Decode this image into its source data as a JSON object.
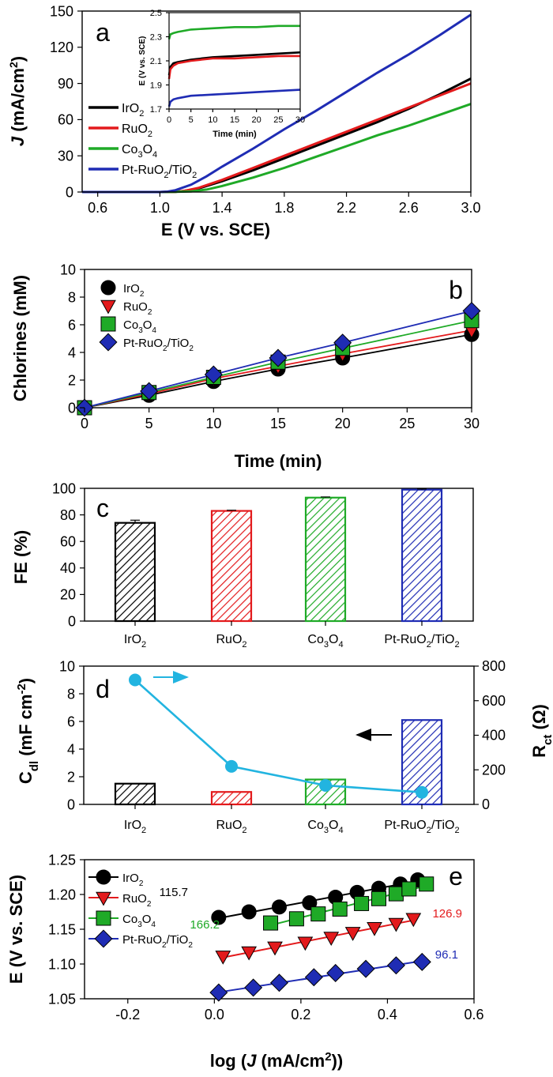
{
  "figure": {
    "colors": {
      "IrO2": "#000000",
      "RuO2": "#e31a1c",
      "Co3O4": "#1faa27",
      "Pt-RuO2/TiO2": "#1f2cb4",
      "Rct": "#22b4e0"
    }
  },
  "chart_data": [
    {
      "panel": "a",
      "type": "line",
      "xlabel": "E (V vs. SCE)",
      "ylabel": "J (mA/cm2)",
      "xlim": [
        0.5,
        3.0
      ],
      "ylim": [
        0,
        150
      ],
      "xticks": [
        0.6,
        1.0,
        1.4,
        1.8,
        2.2,
        2.6,
        3.0
      ],
      "yticks": [
        0,
        30,
        60,
        90,
        120,
        150
      ],
      "legend_position": "left",
      "series": [
        {
          "name": "IrO2",
          "x": [
            0.5,
            1.0,
            1.1,
            1.15,
            1.25,
            1.4,
            1.6,
            1.8,
            2.0,
            2.2,
            2.4,
            2.6,
            2.8,
            3.0
          ],
          "y": [
            0,
            0,
            0.2,
            0.8,
            3,
            9,
            18,
            28,
            38,
            48,
            58,
            69,
            81,
            94
          ]
        },
        {
          "name": "RuO2",
          "x": [
            0.5,
            1.0,
            1.1,
            1.15,
            1.25,
            1.4,
            1.6,
            1.8,
            2.0,
            2.2,
            2.4,
            2.6,
            2.8,
            3.0
          ],
          "y": [
            0,
            0,
            0.2,
            0.8,
            3.5,
            10,
            20,
            30,
            40,
            50,
            60,
            70,
            80,
            90
          ]
        },
        {
          "name": "Co3O4",
          "x": [
            0.5,
            1.0,
            1.1,
            1.2,
            1.3,
            1.4,
            1.6,
            1.8,
            2.0,
            2.2,
            2.4,
            2.6,
            2.8,
            3.0
          ],
          "y": [
            0,
            0,
            0.1,
            0.5,
            2,
            5,
            12,
            20,
            29,
            38,
            47,
            55,
            64,
            73
          ]
        },
        {
          "name": "Pt-RuO2/TiO2",
          "x": [
            0.5,
            1.0,
            1.05,
            1.1,
            1.2,
            1.3,
            1.4,
            1.6,
            1.8,
            2.0,
            2.2,
            2.4,
            2.6,
            2.8,
            3.0
          ],
          "y": [
            0,
            0,
            0.3,
            1.5,
            6,
            13,
            21,
            36,
            52,
            67,
            83,
            99,
            114,
            130,
            147
          ]
        }
      ],
      "legend": [
        "IrO2",
        "RuO2",
        "Co3O4",
        "Pt-RuO2/TiO2"
      ],
      "inset": {
        "type": "line",
        "xlabel": "Time (min)",
        "ylabel": "E (V vs. SCE)",
        "xlim": [
          0,
          30
        ],
        "ylim": [
          1.7,
          2.5
        ],
        "xticks": [
          0,
          5,
          10,
          15,
          20,
          25,
          30
        ],
        "yticks": [
          1.7,
          1.9,
          2.1,
          2.3,
          2.5
        ],
        "series": [
          {
            "name": "IrO2",
            "x": [
              0,
              0.3,
              1,
              2,
              5,
              10,
              15,
              20,
              25,
              30
            ],
            "y": [
              1.98,
              2.05,
              2.08,
              2.09,
              2.11,
              2.13,
              2.14,
              2.15,
              2.16,
              2.17
            ]
          },
          {
            "name": "RuO2",
            "x": [
              0,
              0.3,
              1,
              2,
              5,
              10,
              15,
              20,
              25,
              30
            ],
            "y": [
              1.95,
              2.03,
              2.06,
              2.08,
              2.1,
              2.12,
              2.12,
              2.13,
              2.14,
              2.14
            ]
          },
          {
            "name": "Co3O4",
            "x": [
              0,
              0.3,
              1,
              2,
              5,
              10,
              15,
              20,
              25,
              30
            ],
            "y": [
              2.28,
              2.32,
              2.33,
              2.34,
              2.36,
              2.37,
              2.38,
              2.38,
              2.39,
              2.39
            ]
          },
          {
            "name": "Pt-RuO2/TiO2",
            "x": [
              0,
              0.3,
              1,
              2,
              5,
              10,
              15,
              20,
              25,
              30
            ],
            "y": [
              1.72,
              1.76,
              1.78,
              1.79,
              1.81,
              1.82,
              1.83,
              1.84,
              1.85,
              1.86
            ]
          }
        ]
      }
    },
    {
      "panel": "b",
      "type": "line",
      "xlabel": "Time (min)",
      "ylabel": "Chlorines (mM)",
      "xlim": [
        0,
        30
      ],
      "ylim": [
        0,
        10
      ],
      "xticks": [
        0,
        5,
        10,
        15,
        20,
        25,
        30
      ],
      "yticks": [
        0,
        2,
        4,
        6,
        8,
        10
      ],
      "legend_position": "top-left",
      "x": [
        0,
        5,
        10,
        15,
        20,
        30
      ],
      "series": [
        {
          "name": "IrO2",
          "y": [
            0,
            0.9,
            1.9,
            2.8,
            3.6,
            5.3
          ]
        },
        {
          "name": "RuO2",
          "y": [
            0,
            1.0,
            2.1,
            3.0,
            3.9,
            5.6
          ]
        },
        {
          "name": "Co3O4",
          "y": [
            0,
            1.1,
            2.2,
            3.3,
            4.3,
            6.3
          ]
        },
        {
          "name": "Pt-RuO2/TiO2",
          "y": [
            0,
            1.2,
            2.4,
            3.6,
            4.7,
            7.0
          ]
        }
      ]
    },
    {
      "panel": "c",
      "type": "bar",
      "ylabel": "FE (%)",
      "ylim": [
        0,
        100
      ],
      "yticks": [
        0,
        20,
        40,
        60,
        80,
        100
      ],
      "categories": [
        "IrO2",
        "RuO2",
        "Co3O4",
        "Pt-RuO2/TiO2"
      ],
      "values": [
        74,
        83,
        93,
        99
      ],
      "errors": [
        2,
        0.5,
        0.5,
        0.5
      ]
    },
    {
      "panel": "d",
      "type": "bar",
      "ylabel": "Cdl (mF cm-2)",
      "y2label": "Rct (Ω)",
      "ylim": [
        0,
        10
      ],
      "y2lim": [
        0,
        800
      ],
      "yticks": [
        0,
        2,
        4,
        6,
        8,
        10
      ],
      "y2ticks": [
        0,
        200,
        400,
        600,
        800
      ],
      "categories": [
        "IrO2",
        "RuO2",
        "Co3O4",
        "Pt-RuO2/TiO2"
      ],
      "values": [
        1.5,
        0.9,
        1.8,
        6.1
      ],
      "secondary_series": {
        "type": "line",
        "values": [
          720,
          220,
          110,
          70
        ]
      }
    },
    {
      "panel": "e",
      "type": "scatter",
      "xlabel": "log (J (mA/cm2))",
      "ylabel": "E (V vs. SCE)",
      "xlim": [
        -0.3,
        0.6
      ],
      "ylim": [
        1.05,
        1.25
      ],
      "xticks": [
        -0.2,
        0.0,
        0.2,
        0.4,
        0.6
      ],
      "yticks": [
        1.05,
        1.1,
        1.15,
        1.2,
        1.25
      ],
      "legend_position": "left",
      "series": [
        {
          "name": "IrO2",
          "x": [
            0.01,
            0.08,
            0.15,
            0.22,
            0.28,
            0.33,
            0.38,
            0.43,
            0.47
          ],
          "y": [
            1.167,
            1.175,
            1.182,
            1.188,
            1.196,
            1.203,
            1.209,
            1.215,
            1.221
          ],
          "slope_label": "115.7"
        },
        {
          "name": "RuO2",
          "x": [
            0.02,
            0.08,
            0.14,
            0.21,
            0.27,
            0.32,
            0.37,
            0.42,
            0.46
          ],
          "y": [
            1.111,
            1.117,
            1.124,
            1.131,
            1.138,
            1.145,
            1.152,
            1.158,
            1.165
          ],
          "slope_label": "126.9"
        },
        {
          "name": "Co3O4",
          "x": [
            0.13,
            0.19,
            0.24,
            0.29,
            0.34,
            0.38,
            0.42,
            0.45,
            0.49
          ],
          "y": [
            1.159,
            1.165,
            1.172,
            1.179,
            1.187,
            1.194,
            1.201,
            1.208,
            1.215
          ],
          "slope_label": "166.2"
        },
        {
          "name": "Pt-RuO2/TiO2",
          "x": [
            0.01,
            0.09,
            0.15,
            0.23,
            0.28,
            0.35,
            0.42,
            0.48
          ],
          "y": [
            1.059,
            1.066,
            1.073,
            1.081,
            1.087,
            1.093,
            1.098,
            1.103
          ],
          "slope_label": "96.1"
        }
      ]
    }
  ]
}
